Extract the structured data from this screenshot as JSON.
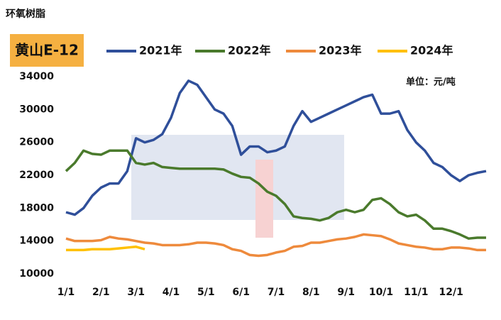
{
  "header": {
    "title": "环氧树脂",
    "product": "黄山E-12",
    "unit": "单位：元/吨"
  },
  "chart_data": {
    "type": "line",
    "categories": [
      "1/1",
      null,
      null,
      null,
      "2/1",
      null,
      null,
      null,
      "3/1",
      null,
      null,
      null,
      "4/1",
      null,
      null,
      null,
      "5/1",
      null,
      null,
      null,
      "6/1",
      null,
      null,
      null,
      "7/1",
      null,
      null,
      null,
      "8/1",
      null,
      null,
      null,
      "9/1",
      null,
      null,
      null,
      "10/1",
      null,
      null,
      null,
      "11/1",
      null,
      null,
      null,
      "12/1",
      null,
      null,
      null,
      null
    ],
    "ylim": [
      10000,
      34000
    ],
    "yticks": [
      10000,
      14000,
      18000,
      22000,
      26000,
      30000,
      34000
    ],
    "grid": false,
    "series": [
      {
        "name": "2021年",
        "color": "#2f4f9a",
        "values": [
          17500,
          17200,
          18000,
          19500,
          20500,
          21000,
          21000,
          22500,
          26500,
          26000,
          26300,
          27000,
          29000,
          32000,
          33500,
          33000,
          31500,
          30000,
          29500,
          28000,
          24500,
          25500,
          25500,
          24800,
          25000,
          25500,
          28000,
          29800,
          28500,
          29000,
          29500,
          30000,
          30500,
          31000,
          31500,
          31800,
          29500,
          29500,
          29800,
          27500,
          26000,
          25000,
          23500,
          23000,
          22000,
          21300,
          22000,
          22300,
          22500
        ]
      },
      {
        "name": "2022年",
        "color": "#4a7a2c",
        "values": [
          22500,
          23500,
          25000,
          24600,
          24500,
          25000,
          25000,
          25000,
          23500,
          23300,
          23500,
          23000,
          22900,
          22800,
          22800,
          22800,
          22800,
          22800,
          22700,
          22200,
          21800,
          21700,
          21000,
          20000,
          19500,
          18500,
          17000,
          16800,
          16700,
          16500,
          16800,
          17500,
          17800,
          17500,
          17800,
          19000,
          19200,
          18500,
          17500,
          17000,
          17200,
          16500,
          15500,
          15500,
          15200,
          14800,
          14300,
          14400,
          14400
        ]
      },
      {
        "name": "2023年",
        "color": "#ee8a3c",
        "values": [
          14300,
          14000,
          14000,
          14000,
          14100,
          14500,
          14300,
          14200,
          14000,
          13800,
          13700,
          13500,
          13500,
          13500,
          13600,
          13800,
          13800,
          13700,
          13500,
          13000,
          12800,
          12300,
          12200,
          12300,
          12600,
          12800,
          13300,
          13400,
          13800,
          13800,
          14000,
          14200,
          14300,
          14500,
          14800,
          14700,
          14600,
          14200,
          13700,
          13500,
          13300,
          13200,
          13000,
          13000,
          13200,
          13200,
          13100,
          12900,
          12900
        ]
      },
      {
        "name": "2024年",
        "color": "#ffc000",
        "values": [
          12900,
          12900,
          12900,
          13000,
          13000,
          13000,
          13100,
          13200,
          13300,
          13000,
          null,
          null,
          null,
          null,
          null,
          null,
          null,
          null,
          null,
          null,
          null,
          null,
          null,
          null,
          null,
          null,
          null,
          null,
          null,
          null,
          null,
          null,
          null,
          null,
          null,
          null,
          null,
          null,
          null,
          null,
          null,
          null,
          null,
          null,
          null,
          null,
          null,
          null,
          null
        ]
      }
    ]
  }
}
